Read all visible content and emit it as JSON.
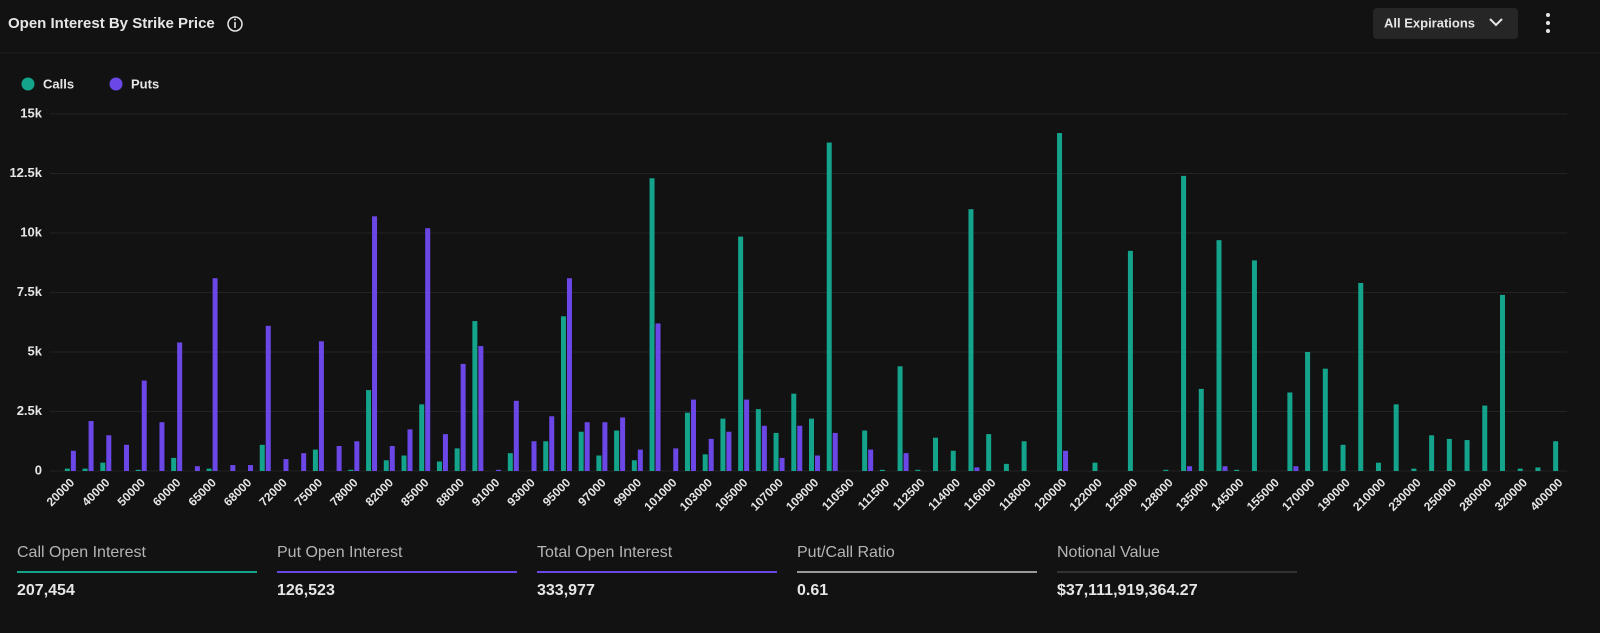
{
  "header": {
    "title": "Open Interest By Strike Price",
    "expiration_button": "All Expirations"
  },
  "chart_data": {
    "type": "bar",
    "categories": [
      "20000",
      null,
      "40000",
      null,
      "50000",
      null,
      "60000",
      null,
      "65000",
      null,
      "68000",
      null,
      "72000",
      null,
      "75000",
      null,
      "78000",
      null,
      "82000",
      null,
      "85000",
      null,
      "88000",
      null,
      "91000",
      null,
      "93000",
      null,
      "95000",
      null,
      "97000",
      null,
      "99000",
      null,
      "101000",
      null,
      "103000",
      null,
      "105000",
      null,
      "107000",
      null,
      "109000",
      null,
      "110500",
      null,
      "111500",
      null,
      "112500",
      null,
      "114000",
      null,
      "116000",
      null,
      "118000",
      null,
      "120000",
      null,
      "122000",
      null,
      "125000",
      null,
      "128000",
      null,
      "135000",
      null,
      "145000",
      null,
      "155000",
      null,
      "170000",
      null,
      "190000",
      null,
      "210000",
      null,
      "230000",
      null,
      "250000",
      null,
      "280000",
      null,
      "320000",
      null,
      "400000"
    ],
    "series": [
      {
        "name": "Calls",
        "color": "#14a38b",
        "values": [
          100,
          100,
          350,
          0,
          50,
          0,
          550,
          0,
          100,
          0,
          0,
          1100,
          0,
          0,
          900,
          0,
          50,
          3400,
          450,
          650,
          2800,
          400,
          950,
          6300,
          0,
          750,
          0,
          1250,
          6500,
          1650,
          650,
          1700,
          450,
          12300,
          0,
          2450,
          700,
          2200,
          9850,
          2600,
          1600,
          3250,
          2200,
          13800,
          0,
          1700,
          50,
          4400,
          50,
          1400,
          850,
          11000,
          1550,
          300,
          1250,
          0,
          14200,
          0,
          350,
          0,
          9250,
          0,
          50,
          12400,
          3450,
          9700,
          50,
          8850,
          0,
          3300,
          5000,
          4300,
          1100,
          7900,
          350,
          2800,
          100,
          1500,
          1350,
          1300,
          2750,
          7400,
          100,
          150,
          1250
        ]
      },
      {
        "name": "Puts",
        "color": "#6c47e8",
        "values": [
          850,
          2100,
          1500,
          1100,
          3800,
          2050,
          5400,
          200,
          8100,
          250,
          250,
          6100,
          500,
          750,
          5450,
          1050,
          1250,
          10700,
          1050,
          1750,
          10200,
          1550,
          4500,
          5250,
          50,
          2950,
          1250,
          2300,
          8100,
          2050,
          2050,
          2250,
          900,
          6200,
          950,
          3000,
          1350,
          1650,
          3000,
          1900,
          550,
          1900,
          650,
          1600,
          0,
          900,
          0,
          750,
          0,
          0,
          0,
          150,
          0,
          0,
          0,
          0,
          850,
          0,
          0,
          0,
          0,
          0,
          0,
          200,
          0,
          200,
          0,
          0,
          0,
          200,
          0,
          0,
          0,
          0,
          0,
          0,
          0,
          0,
          0,
          0,
          0,
          0,
          0,
          0,
          0
        ]
      }
    ],
    "ylim": [
      0,
      15000
    ],
    "yticks": [
      0,
      {
        "value": 2500,
        "label": "2.5k"
      },
      {
        "value": 5000,
        "label": "5k"
      },
      {
        "value": 7500,
        "label": "7.5k"
      },
      {
        "value": 10000,
        "label": "10k"
      },
      {
        "value": 12500,
        "label": "12.5k"
      },
      {
        "value": 15000,
        "label": "15k"
      }
    ],
    "grid": true,
    "legend": "top-left"
  },
  "stats": [
    {
      "label": "Call Open Interest",
      "value": "207,454",
      "color": "#14a38b"
    },
    {
      "label": "Put Open Interest",
      "value": "126,523",
      "color": "#6c47e8"
    },
    {
      "label": "Total Open Interest",
      "value": "333,977",
      "color": "#6c47e8"
    },
    {
      "label": "Put/Call Ratio",
      "value": "0.61",
      "color": "#9a9a9a"
    },
    {
      "label": "Notional Value",
      "value": "$37,111,919,364.27",
      "color": "#333333"
    }
  ]
}
